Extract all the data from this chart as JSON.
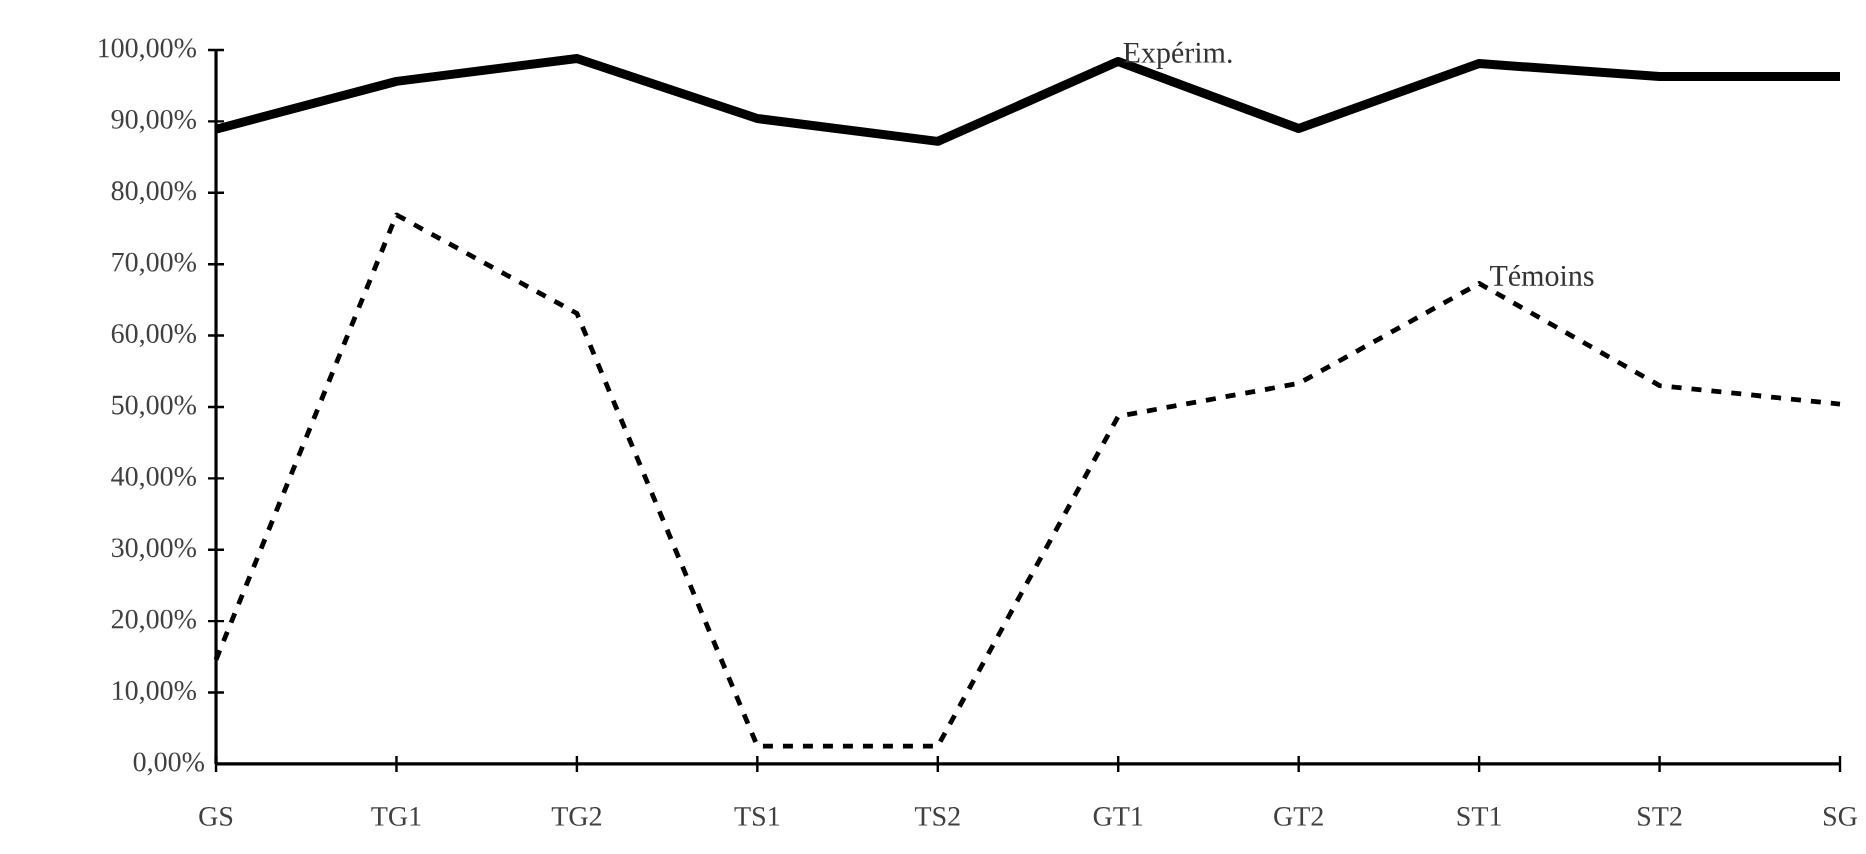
{
  "chart_data": {
    "type": "line",
    "categories": [
      "GS",
      "TG1",
      "TG2",
      "TS1",
      "TS2",
      "GT1",
      "GT2",
      "ST1",
      "ST2",
      "SG"
    ],
    "series": [
      {
        "name": "Expérim.",
        "color": "#000000",
        "line_style": "solid",
        "values": [
          88.9,
          95.6,
          98.8,
          90.4,
          87.2,
          98.4,
          89.0,
          98.1,
          96.3,
          96.3
        ]
      },
      {
        "name": "Témoins",
        "color": "#000000",
        "line_style": "dashed",
        "values": [
          14.6,
          76.9,
          63.1,
          2.5,
          2.5,
          48.7,
          53.3,
          67.3,
          53.0,
          50.4
        ]
      }
    ],
    "ylim": [
      0,
      100
    ],
    "yticks": [
      {
        "value": 0,
        "label": "0,00%"
      },
      {
        "value": 10,
        "label": "10,00%"
      },
      {
        "value": 20,
        "label": "20,00%"
      },
      {
        "value": 30,
        "label": "30,00%"
      },
      {
        "value": 40,
        "label": "40,00%"
      },
      {
        "value": 50,
        "label": "50,00%"
      },
      {
        "value": 60,
        "label": "60,00%"
      },
      {
        "value": 70,
        "label": "70,00%"
      },
      {
        "value": 80,
        "label": "80,00%"
      },
      {
        "value": 90,
        "label": "90,00%"
      },
      {
        "value": 100,
        "label": "100,00%"
      }
    ],
    "grid": false,
    "legend": false,
    "marker": "none"
  }
}
